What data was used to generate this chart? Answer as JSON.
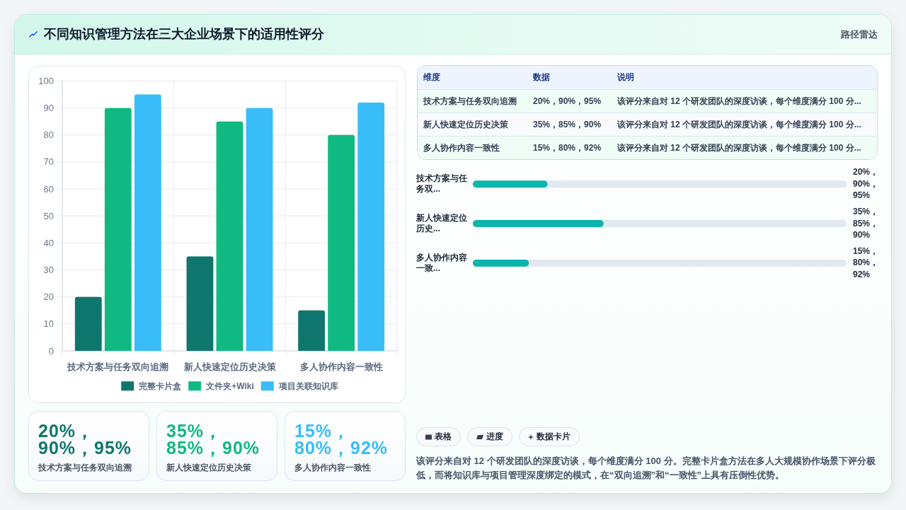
{
  "chart_data": [
    {
      "type": "other",
      "annotations": [
        "路径雷达"
      ]
    },
    {
      "type": "bar",
      "title": "不同知识管理方法在三大企业场景下的适用性评分",
      "categories": [
        "技术方案与任务双向追溯",
        "新人快速定位历史决策",
        "多人协作内容一致性"
      ],
      "series": [
        {
          "name": "完整卡片盒",
          "color": "#0f766e",
          "values": [
            20,
            35,
            15
          ]
        },
        {
          "name": "文件夹+Wiki",
          "color": "#10b981",
          "values": [
            90,
            85,
            80
          ]
        },
        {
          "name": "项目关联知识库",
          "color": "#38bdf8",
          "values": [
            95,
            90,
            92
          ]
        }
      ],
      "ylim": [
        0,
        100
      ],
      "yticks": [
        0,
        10,
        20,
        30,
        40,
        50,
        60,
        70,
        80,
        90,
        100
      ],
      "grid": true,
      "legend": "bottom"
    },
    {
      "type": "other",
      "annotations": [
        "维度",
        "数据",
        "说明",
        "技术方案与任务双向追溯",
        "20%，90%，95%",
        "该评分来自对 12 个研发团队的深度访谈，每个维度满分 100 分...",
        "新人快速定位历史决策",
        "35%，85%，90%",
        "该评分来自对 12 个研发团队的深度访谈，每个维度满分 100 分...",
        "多人协作内容一致性",
        "15%，80%，92%",
        "该评分来自对 12 个研发团队的深度访谈，每个维度满分 100 分..."
      ]
    },
    {
      "type": "bar",
      "orientation": "horizontal",
      "categories": [
        "技术方案与任务双...",
        "新人快速定位历史...",
        "多人协作内容一致..."
      ],
      "values": [
        20,
        35,
        15
      ],
      "value_labels": [
        "20%，90%，95%",
        "35%，85%，90%",
        "15%，80%，92%"
      ],
      "color": "#0db5ac",
      "xlim": [
        0,
        100
      ],
      "tick_labels": false
    },
    {
      "type": "other",
      "annotations": [
        "20%，90%，95%",
        "技术方案与任务双向追溯",
        "35%，85%，90%",
        "新人快速定位历史决策",
        "15%，80%，92%",
        "多人协作内容一致性"
      ]
    },
    {
      "type": "other",
      "annotations": [
        "表格",
        "进度",
        "数据卡片",
        "该评分来自对 12 个研发团队的深度访谈，每个维度满分 100 分。完整卡片盒方法在多人大规模协作场景下评分极低，而将知识库与项目管理深度绑定的模式，在“双向追溯”和“一致性”上具有压倒性优势。"
      ]
    }
  ]
}
